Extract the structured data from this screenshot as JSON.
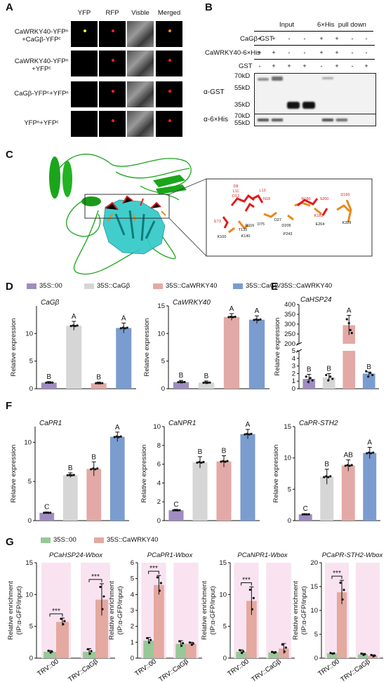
{
  "panels": {
    "A": "A",
    "B": "B",
    "C": "C",
    "D": "D",
    "E": "E",
    "F": "F",
    "G": "G"
  },
  "panelA": {
    "columns": [
      "YFP",
      "RFP",
      "Visble",
      "Merged"
    ],
    "rows": [
      [
        "CaWRKY40-YFPⁿ",
        "+CaGβ-YFPᶜ"
      ],
      [
        "CaWRKY40-YFPⁿ",
        "+YFPᶜ"
      ],
      [
        "CaGβ-YFPᶜ+YFPⁿ"
      ],
      [
        "YFPⁿ+YFPᶜ"
      ]
    ]
  },
  "panelB": {
    "groups": [
      "Input",
      "6×His  pull down"
    ],
    "rows": [
      {
        "label": "CaGβ-GST",
        "symbols": [
          "+",
          "+",
          "-",
          "-",
          "+",
          "+",
          "-",
          "-"
        ]
      },
      {
        "label": "CaWRKY40-6×His",
        "symbols": [
          "+",
          "+",
          "-",
          "-",
          "+",
          "+",
          "-",
          "-"
        ]
      },
      {
        "label": "GST",
        "symbols": [
          "-",
          "+",
          "+",
          "+",
          "-",
          "+",
          "-",
          "+"
        ]
      }
    ],
    "markers": [
      "70kD",
      "55kD",
      "35kD",
      "70kD",
      "55kD"
    ],
    "antibodies": [
      "α-GST",
      "α-6×His"
    ]
  },
  "panelC": {
    "residues": [
      "D8",
      "L11",
      "D12",
      "L13",
      "N18",
      "D75",
      "D27",
      "R116",
      "T135",
      "K140",
      "K100",
      "E73",
      "D205",
      "P243",
      "R180",
      "S200",
      "K183",
      "E264",
      "D160",
      "K329"
    ]
  },
  "legendD": [
    "35S::00",
    "35S::CaGβ",
    "35S::CaWRKY40",
    "35S::CaGβ/35S::CaWRKY40"
  ],
  "legendG": [
    "35S::00",
    "35S::CaWRKY40"
  ],
  "colors": {
    "purple": "#9f8cc0",
    "grey": "#d6d6d6",
    "pink": "#e3a9a6",
    "blue": "#7a9ccf",
    "green": "#97c997",
    "salmon": "#e4a9a0",
    "highlight": "#f9e3f1",
    "cyan": "#2ec8c8",
    "leaf": "#1aa51a",
    "red": "#e01b1b",
    "orange": "#e88a1a"
  },
  "chart_data": [
    {
      "type": "bar",
      "title": "CaGβ",
      "ylabel": "Relative expression",
      "ylim": [
        0,
        15
      ],
      "yticks": [
        0,
        5,
        10
      ],
      "categories": [
        "35S::00",
        "35S::CaGβ",
        "35S::CaWRKY40",
        "35S::CaGβ/35S::CaWRKY40"
      ],
      "values": [
        1.1,
        11.4,
        1.0,
        11.0
      ],
      "errors": [
        0.2,
        0.8,
        0.2,
        0.9
      ],
      "letters": [
        "B",
        "A",
        "B",
        "A"
      ]
    },
    {
      "type": "bar",
      "title": "CaWRKY40",
      "ylabel": "Relative expression",
      "ylim": [
        0,
        15
      ],
      "yticks": [
        0,
        5,
        10,
        15
      ],
      "categories": [
        "35S::00",
        "35S::CaGβ",
        "35S::CaWRKY40",
        "35S::CaGβ/35S::CaWRKY40"
      ],
      "values": [
        1.2,
        1.1,
        13.0,
        12.5
      ],
      "errors": [
        0.3,
        0.3,
        0.6,
        0.7
      ],
      "letters": [
        "B",
        "B",
        "A",
        "A"
      ]
    },
    {
      "type": "bar",
      "title": "CaHSP24",
      "ylabel": "Relative expression",
      "broken_axis": true,
      "yticks_low": [
        0,
        1,
        2,
        3,
        4,
        5
      ],
      "yticks_high": [
        200,
        250,
        300,
        350,
        400
      ],
      "categories": [
        "35S::00",
        "35S::CaGβ",
        "35S::CaWRKY40",
        "35S::CaGβ/35S::CaWRKY40"
      ],
      "values": [
        1.3,
        1.5,
        295,
        2.0
      ],
      "errors": [
        0.6,
        0.5,
        50,
        0.2
      ],
      "letters": [
        "B",
        "B",
        "A",
        "B"
      ]
    },
    {
      "type": "bar",
      "title": "CaPR1",
      "ylabel": "Relative expression",
      "ylim": [
        0,
        12
      ],
      "yticks": [
        0,
        5,
        10
      ],
      "categories": [
        "35S::00",
        "35S::CaGβ",
        "35S::CaWRKY40",
        "35S::CaGβ/35S::CaWRKY40"
      ],
      "values": [
        1.0,
        5.8,
        6.6,
        10.7
      ],
      "errors": [
        0.1,
        0.3,
        0.9,
        0.6
      ],
      "letters": [
        "C",
        "B",
        "B",
        "A"
      ]
    },
    {
      "type": "bar",
      "title": "CaNPR1",
      "ylabel": "Relative expression",
      "ylim": [
        0,
        10
      ],
      "yticks": [
        0,
        2,
        4,
        6,
        8,
        10
      ],
      "categories": [
        "35S::00",
        "35S::CaGβ",
        "35S::CaWRKY40",
        "35S::CaGβ/35S::CaWRKY40"
      ],
      "values": [
        1.1,
        6.2,
        6.3,
        9.2
      ],
      "errors": [
        0.1,
        0.6,
        0.6,
        0.5
      ],
      "letters": [
        "C",
        "B",
        "B",
        "A"
      ]
    },
    {
      "type": "bar",
      "title": "CaPR-STH2",
      "ylabel": "Relative expression",
      "ylim": [
        0,
        15
      ],
      "yticks": [
        0,
        5,
        10,
        15
      ],
      "categories": [
        "35S::00",
        "35S::CaGβ",
        "35S::CaWRKY40",
        "35S::CaGβ/35S::CaWRKY40"
      ],
      "values": [
        1.0,
        7.0,
        8.8,
        10.8
      ],
      "errors": [
        0.1,
        1.2,
        0.9,
        0.9
      ],
      "letters": [
        "C",
        "B",
        "AB",
        "A"
      ]
    },
    {
      "type": "bar",
      "title": "PCaHSP24-Wbox",
      "ylabel": "Relative enrichment",
      "ylabel2": "(IP:α-GFP/input)",
      "ylim": [
        0,
        15
      ],
      "yticks": [
        0,
        5,
        10,
        15
      ],
      "categories": [
        "TRV::00",
        "TRV::CaGβ"
      ],
      "series": [
        {
          "name": "35S::00",
          "values": [
            1.0,
            1.0
          ],
          "errors": [
            0.2,
            0.5
          ]
        },
        {
          "name": "35S::CaWRKY40",
          "values": [
            5.7,
            9.2
          ],
          "errors": [
            0.6,
            2.5
          ]
        }
      ],
      "significance": [
        "***",
        "***"
      ]
    },
    {
      "type": "bar",
      "title": "PCaPR1-Wbox",
      "ylabel": "Relative enrichment",
      "ylabel2": "(IP:α-GFP/input)",
      "ylim": [
        0,
        6
      ],
      "yticks": [
        0,
        1,
        2,
        3,
        4,
        5,
        6
      ],
      "categories": [
        "TRV::00",
        "TRV::CaGβ"
      ],
      "series": [
        {
          "name": "35S::00",
          "values": [
            1.1,
            0.9
          ],
          "errors": [
            0.2,
            0.2
          ]
        },
        {
          "name": "35S::CaWRKY40",
          "values": [
            4.6,
            0.9
          ],
          "errors": [
            0.6,
            0.1
          ]
        }
      ],
      "significance": [
        "***",
        ""
      ]
    },
    {
      "type": "bar",
      "title": "PCaNPR1-Wbox",
      "ylabel": "Relative enrichment",
      "ylabel2": "(IP:α-GFP/input)",
      "ylim": [
        0,
        15
      ],
      "yticks": [
        0,
        5,
        10,
        15
      ],
      "categories": [
        "TRV::00",
        "TRV::CaGβ"
      ],
      "series": [
        {
          "name": "35S::00",
          "values": [
            1.0,
            0.9
          ],
          "errors": [
            0.3,
            0.1
          ]
        },
        {
          "name": "35S::CaWRKY40",
          "values": [
            9.0,
            1.5
          ],
          "errors": [
            2.2,
            0.8
          ]
        }
      ],
      "significance": [
        "***",
        ""
      ]
    },
    {
      "type": "bar",
      "title": "PCaPR-STH2-Wbox",
      "ylabel": "Relative enrichment",
      "ylabel2": "(IP:α-GFP/input)",
      "ylim": [
        0,
        20
      ],
      "yticks": [
        0,
        5,
        10,
        15,
        20
      ],
      "categories": [
        "TRV::00",
        "TRV::CaGβ"
      ],
      "series": [
        {
          "name": "35S::00",
          "values": [
            1.0,
            0.8
          ],
          "errors": [
            0.1,
            0.2
          ]
        },
        {
          "name": "35S::CaWRKY40",
          "values": [
            13.8,
            0.5
          ],
          "errors": [
            2.5,
            0.2
          ]
        }
      ],
      "significance": [
        "***",
        ""
      ]
    }
  ]
}
